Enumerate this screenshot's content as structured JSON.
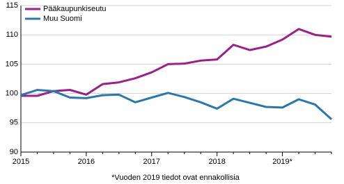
{
  "chart_data": {
    "type": "line",
    "footnote": "*Vuoden 2019 tiedot ovat ennakollisia",
    "categories": [
      "2015",
      null,
      null,
      null,
      "2016",
      null,
      null,
      null,
      "2017",
      null,
      null,
      null,
      "2018",
      null,
      null,
      null,
      "2019*",
      null,
      null,
      null
    ],
    "series": [
      {
        "name": "Pääkaupunkiseutu",
        "color": "#9c1f8c",
        "values": [
          99.6,
          99.6,
          100.4,
          100.6,
          99.8,
          101.6,
          101.9,
          102.6,
          103.6,
          105.0,
          105.1,
          105.6,
          105.8,
          108.3,
          107.4,
          108.0,
          109.2,
          111.0,
          110.0,
          109.7
        ]
      },
      {
        "name": "Muu Suomi",
        "color": "#2878b0",
        "values": [
          99.7,
          100.6,
          100.4,
          99.3,
          99.2,
          99.7,
          99.8,
          98.5,
          99.3,
          100.1,
          99.4,
          98.5,
          97.4,
          99.1,
          98.4,
          97.7,
          97.6,
          99.0,
          98.1,
          95.6
        ]
      }
    ],
    "ylim": [
      90,
      115
    ],
    "yticks": [
      90,
      95,
      100,
      105,
      110,
      115
    ],
    "grid": true,
    "legend": "top-left"
  }
}
